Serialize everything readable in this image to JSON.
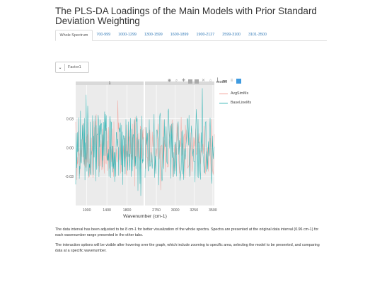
{
  "page": {
    "title": "The PLS-DA Loadings of the Main Models with Prior Standard Deviation Weighting"
  },
  "tabs": [
    {
      "label": "Whole Spectrum",
      "active": true
    },
    {
      "label": "700-999",
      "active": false
    },
    {
      "label": "1000-1299",
      "active": false
    },
    {
      "label": "1300-1599",
      "active": false
    },
    {
      "label": "1600-1899",
      "active": false
    },
    {
      "label": "1900-2127",
      "active": false
    },
    {
      "label": "2599-3100",
      "active": false
    },
    {
      "label": "3101-3500",
      "active": false
    }
  ],
  "dropdown": {
    "selected": "Factor1",
    "icon": "chevron-down-icon"
  },
  "modebar": {
    "icons": [
      "camera-icon",
      "zoom-icon",
      "pan-icon",
      "zoom-in-icon",
      "zoom-out-icon",
      "autoscale-icon",
      "reset-axes-icon",
      "spike-lines-icon",
      "hover-closest-icon",
      "hover-compare-icon",
      "plotly-logo-icon"
    ]
  },
  "colors": {
    "avg": "#f4a29a",
    "baseline": "#35b5b5",
    "panel": "#ebebeb",
    "strip": "#d9d9d9",
    "tab_link": "#337ab7"
  },
  "chart_data": {
    "type": "line",
    "facets": [
      {
        "label": "1",
        "xlim": [
          780,
          2130
        ],
        "x_ticks": [
          1000,
          1400,
          1800
        ]
      },
      {
        "label": "",
        "xlim": [
          2599,
          3520
        ],
        "x_ticks": [
          2750,
          3000,
          3250,
          3500
        ]
      }
    ],
    "xlabel": "Wavenumber (cm-1)",
    "ylabel": "",
    "ylim": [
      -0.06,
      0.065
    ],
    "y_ticks": [
      0.03,
      0.0,
      -0.03
    ],
    "y_tick_labels": [
      "0.03",
      "0.00",
      "-0.03"
    ],
    "grid": true,
    "legend_title": "model",
    "legend_position": "right",
    "series": [
      {
        "name": "AvgSimMs",
        "color": "#f4a29a",
        "amplitude": 0.028
      },
      {
        "name": "BaseLineMs",
        "color": "#35b5b5",
        "amplitude": 0.035
      }
    ]
  },
  "paragraphs": [
    "The data interval has been adjusted to be 8 cm-1 for better visualization of the whole spectra. Spectra are presented at the original data interval (0.96 cm-1) for each wavenumber range presented in the other tabs.",
    "The interaction options will be visible after hovering over the graph, which include zooming to specific area, selecting the model to be presented, and comparing data at a specific wavenumber."
  ]
}
